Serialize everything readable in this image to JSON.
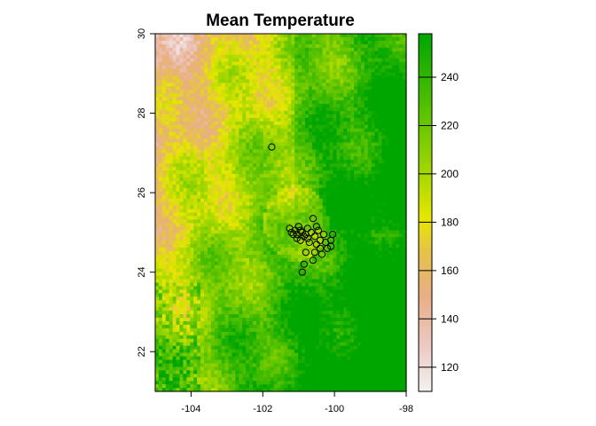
{
  "chart_data": {
    "type": "heatmap",
    "title": "Mean Temperature",
    "xlim": [
      -105,
      -98
    ],
    "ylim": [
      21,
      30
    ],
    "x_ticks": [
      -104,
      -102,
      -100,
      -98
    ],
    "x_tick_labels": [
      "-104",
      "-102",
      "-100",
      "-98"
    ],
    "y_ticks": [
      22,
      24,
      26,
      28,
      30
    ],
    "y_tick_labels": [
      "22",
      "24",
      "26",
      "28",
      "30"
    ],
    "legend": {
      "placement": "right",
      "range": [
        110,
        258
      ],
      "ticks": [
        120,
        140,
        160,
        180,
        200,
        220,
        240
      ],
      "tick_labels": [
        "120",
        "140",
        "160",
        "180",
        "200",
        "220",
        "240"
      ],
      "color_stops": [
        {
          "value": 110,
          "color": "#f2f2f2"
        },
        {
          "value": 130,
          "color": "#ecc8c0"
        },
        {
          "value": 150,
          "color": "#e8ae86"
        },
        {
          "value": 168,
          "color": "#e6c24a"
        },
        {
          "value": 182,
          "color": "#e6e600"
        },
        {
          "value": 200,
          "color": "#a6d800"
        },
        {
          "value": 225,
          "color": "#5cc300"
        },
        {
          "value": 258,
          "color": "#00a600"
        }
      ]
    },
    "points": [
      {
        "lon": -101.75,
        "lat": 27.15
      },
      {
        "lon": -101.25,
        "lat": 25.1
      },
      {
        "lon": -101.1,
        "lat": 25.05
      },
      {
        "lon": -101.0,
        "lat": 25.15
      },
      {
        "lon": -100.9,
        "lat": 25.0
      },
      {
        "lon": -100.75,
        "lat": 25.1
      },
      {
        "lon": -100.6,
        "lat": 25.35
      },
      {
        "lon": -100.45,
        "lat": 25.05
      },
      {
        "lon": -100.3,
        "lat": 24.95
      },
      {
        "lon": -100.1,
        "lat": 24.8
      },
      {
        "lon": -100.05,
        "lat": 24.95
      },
      {
        "lon": -100.2,
        "lat": 24.6
      },
      {
        "lon": -100.35,
        "lat": 24.45
      },
      {
        "lon": -100.55,
        "lat": 24.5
      },
      {
        "lon": -100.6,
        "lat": 24.3
      },
      {
        "lon": -100.8,
        "lat": 24.5
      },
      {
        "lon": -100.85,
        "lat": 24.2
      },
      {
        "lon": -100.9,
        "lat": 24.0
      },
      {
        "lon": -101.15,
        "lat": 24.95
      },
      {
        "lon": -101.05,
        "lat": 24.85
      },
      {
        "lon": -100.95,
        "lat": 24.8
      },
      {
        "lon": -100.7,
        "lat": 24.75
      },
      {
        "lon": -100.5,
        "lat": 24.7
      },
      {
        "lon": -100.4,
        "lat": 24.8
      },
      {
        "lon": -100.65,
        "lat": 25.0
      },
      {
        "lon": -100.8,
        "lat": 24.95
      },
      {
        "lon": -101.2,
        "lat": 25.0
      },
      {
        "lon": -100.95,
        "lat": 25.05
      },
      {
        "lon": -100.55,
        "lat": 24.9
      },
      {
        "lon": -100.25,
        "lat": 24.75
      },
      {
        "lon": -100.75,
        "lat": 24.85
      },
      {
        "lon": -100.4,
        "lat": 24.6
      },
      {
        "lon": -100.1,
        "lat": 24.65
      },
      {
        "lon": -100.5,
        "lat": 25.15
      },
      {
        "lon": -101.05,
        "lat": 24.95
      },
      {
        "lon": -100.85,
        "lat": 24.9
      }
    ]
  }
}
